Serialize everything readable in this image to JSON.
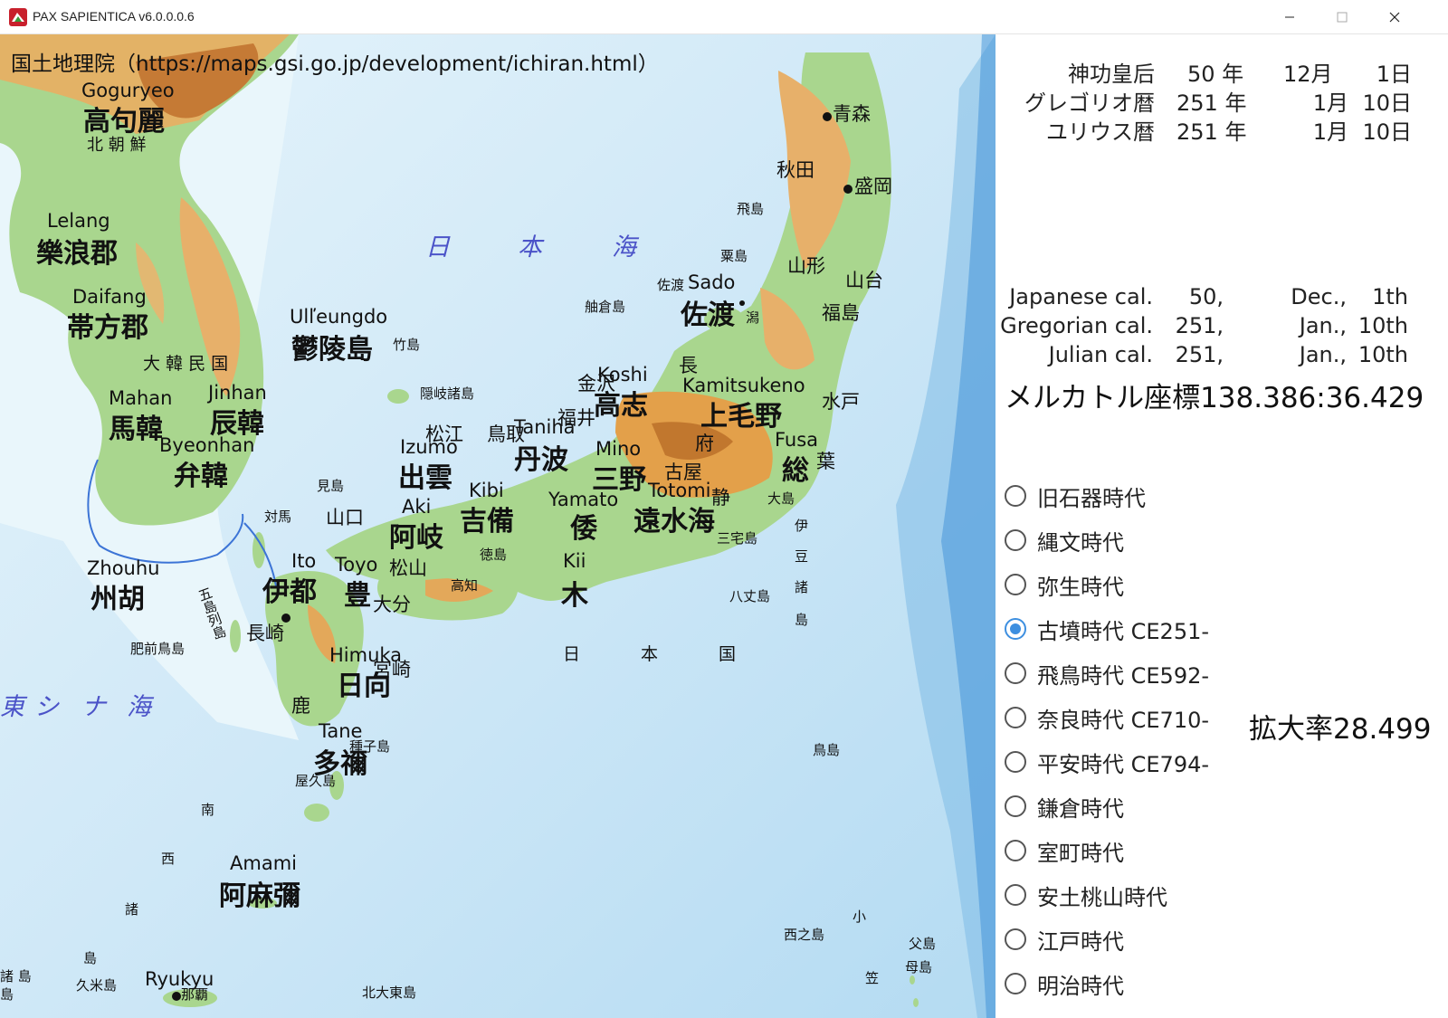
{
  "window": {
    "title": "PAX SAPIENTICA v6.0.0.0.6"
  },
  "map": {
    "attribution": "国土地理院（https://maps.gsi.go.jp/development/ichiran.html）",
    "labels": {
      "goguryeo_en": "Goguryeo",
      "goguryeo": "高句麗",
      "north_korea": "北 朝 鮮",
      "lelang_en": "Lelang",
      "lelang": "樂浪郡",
      "daifang_en": "Daifang",
      "daifang": "帯方郡",
      "ulleungdo_en": "Ulľeungdo",
      "ulleungdo": "鬱陵島",
      "takeshima": "竹島",
      "south_korea": "大 韓 民 国",
      "mahan_en": "Mahan",
      "mahan": "馬韓",
      "jinhan_en": "Jinhan",
      "jinhan": "辰韓",
      "byeonhan_en": "Byeonhan",
      "byeonhan": "弁韓",
      "tsushima": "対馬",
      "zhouhu_en": "Zhouhu",
      "zhouhu": "州胡",
      "goto": "五島列島",
      "hizen": "肥前鳥島",
      "ito_en": "Ito",
      "ito": "伊都",
      "nagasaki": "長崎",
      "toyo_en": "Toyo",
      "toyo": "豊",
      "oita": "大分",
      "himuka_en": "Himuka",
      "miyazaki": "宮崎",
      "himuka": "日向",
      "kagoshima": "鹿",
      "tane_en": "Tane",
      "tanegashima": "種子島",
      "tane": "多禰",
      "yakushima": "屋久島",
      "nansei_1": "南",
      "nansei_2": "西",
      "nansei_3": "諸",
      "nansei_4": "島",
      "amami_en": "Amami",
      "amami": "阿麻彌",
      "ryukyu_en": "Ryukyu",
      "naha": "那覇",
      "kume": "久米島",
      "north_daito": "北大東島",
      "sakishima": "諸 島",
      "sakishima2": "島",
      "aki_en": "Aki",
      "aki": "阿岐",
      "kibi_en": "Kibi",
      "kibi": "吉備",
      "izumo_en": "Izumo",
      "izumo": "出雲",
      "tottori": "鳥取",
      "matsue": "松江",
      "oki": "隠岐諸島",
      "mishima": "見島",
      "yamaguchi": "山口",
      "matsuyama": "松山",
      "kochi": "高知",
      "tokushima": "徳島",
      "taniha_en": "Taniha",
      "taniha": "丹波",
      "yamato_en": "Yamato",
      "wa": "倭",
      "kii_en": "Kii",
      "ki": "木",
      "mino_en": "Mino",
      "mino": "三野",
      "koshi_en": "Koshi",
      "koshi": "高志",
      "kanazawa": "金沢",
      "fukui": "福井",
      "totomi_en": "Totomi",
      "totomi": "遠水海",
      "nagoya": "古屋",
      "shizuoka": "静",
      "kamitsukeno_en": "Kamitsukeno",
      "kamitsukeno": "上毛野",
      "fusa_en": "Fusa",
      "fusa": "総",
      "chiba": "葉",
      "mito": "水戸",
      "sado_en": "Sado",
      "sado_jp": "佐渡",
      "sado": "佐渡",
      "niigata": "潟",
      "nagano": "長",
      "kofu": "府",
      "yamagata": "山形",
      "sendai": "山台",
      "fukushima": "福島",
      "akita": "秋田",
      "aomori": "青森",
      "morioka": "盛岡",
      "tobishima": "飛島",
      "awashima": "粟島",
      "okushiri": "舳倉島",
      "oshima": "大島",
      "miyake": "三宅島",
      "hachijo": "八丈島",
      "izu_1": "伊",
      "izu_2": "豆",
      "izu_3": "諸",
      "izu_4": "島",
      "torishima": "鳥島",
      "nishinoshima": "西之島",
      "ogasawara_1": "小",
      "ogasawara_2": "笠",
      "chichijima": "父島",
      "hahajima": "母島",
      "sea_japan_1": "日",
      "sea_japan_2": "本",
      "sea_japan_3": "海",
      "ecs_1": "東",
      "ecs_2": "シ",
      "ecs_3": "ナ",
      "ecs_4": "海",
      "japan_1": "日",
      "japan_2": "本",
      "japan_3": "国"
    }
  },
  "calendar_jp": {
    "rows": [
      {
        "name": "神功皇后",
        "year": "50 年",
        "month": "12月",
        "day": "1日"
      },
      {
        "name": "グレゴリオ暦",
        "year": "251 年",
        "month": "1月",
        "day": "10日"
      },
      {
        "name": "ユリウス暦",
        "year": "251 年",
        "month": "1月",
        "day": "10日"
      }
    ]
  },
  "calendar_en": {
    "rows": [
      {
        "name": "Japanese cal.",
        "year": "50,",
        "month": "Dec.,",
        "day": "1th"
      },
      {
        "name": "Gregorian cal.",
        "year": "251,",
        "month": "Jan.,",
        "day": "10th"
      },
      {
        "name": "Julian cal.",
        "year": "251,",
        "month": "Jan.,",
        "day": "10th"
      }
    ]
  },
  "mercator": "メルカトル座標138.386:36.429",
  "zoom": "拡大率28.499",
  "eras": [
    {
      "label": "旧石器時代",
      "selected": false
    },
    {
      "label": "縄文時代",
      "selected": false
    },
    {
      "label": "弥生時代",
      "selected": false
    },
    {
      "label": "古墳時代 CE251-",
      "selected": true
    },
    {
      "label": "飛鳥時代 CE592-",
      "selected": false
    },
    {
      "label": "奈良時代 CE710-",
      "selected": false
    },
    {
      "label": "平安時代 CE794-",
      "selected": false
    },
    {
      "label": "鎌倉時代",
      "selected": false
    },
    {
      "label": "室町時代",
      "selected": false
    },
    {
      "label": "安土桃山時代",
      "selected": false
    },
    {
      "label": "江戸時代",
      "selected": false
    },
    {
      "label": "明治時代",
      "selected": false
    }
  ],
  "colors": {
    "sea": "#cfe8f7",
    "lowland": "#a6d690",
    "highland": "#e8a04a",
    "accent": "#3d8fe0"
  }
}
